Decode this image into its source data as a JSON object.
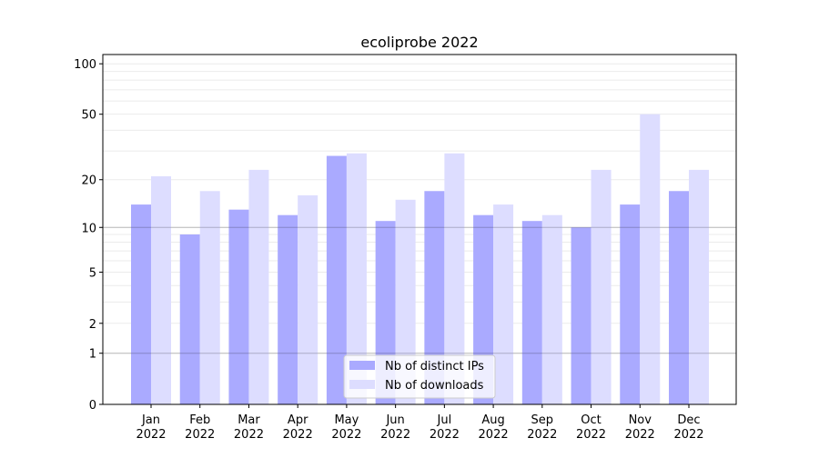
{
  "chart_data": {
    "type": "bar",
    "title": "ecoliprobe 2022",
    "xlabel": "",
    "ylabel": "",
    "yscale": "log10(1+y)",
    "ylim": [
      0,
      110
    ],
    "yticks": [
      0,
      1,
      2,
      5,
      10,
      20,
      50,
      100
    ],
    "ytick_labels": [
      "0",
      "1",
      "2",
      "5",
      "10",
      "20",
      "50",
      "100"
    ],
    "categories": [
      "Jan\n2022",
      "Feb\n2022",
      "Mar\n2022",
      "Apr\n2022",
      "May\n2022",
      "Jun\n2022",
      "Jul\n2022",
      "Aug\n2022",
      "Sep\n2022",
      "Oct\n2022",
      "Nov\n2022",
      "Dec\n2022"
    ],
    "series": [
      {
        "name": "Nb of distinct IPs",
        "color": "#aaaaff",
        "values": [
          14,
          9,
          13,
          12,
          28,
          11,
          17,
          12,
          11,
          10,
          14,
          17
        ]
      },
      {
        "name": "Nb of downloads",
        "color": "#ddddff",
        "values": [
          21,
          17,
          23,
          16,
          29,
          15,
          29,
          14,
          12,
          23,
          50,
          23
        ]
      }
    ],
    "legend_position": "lower-center",
    "grid": true
  }
}
